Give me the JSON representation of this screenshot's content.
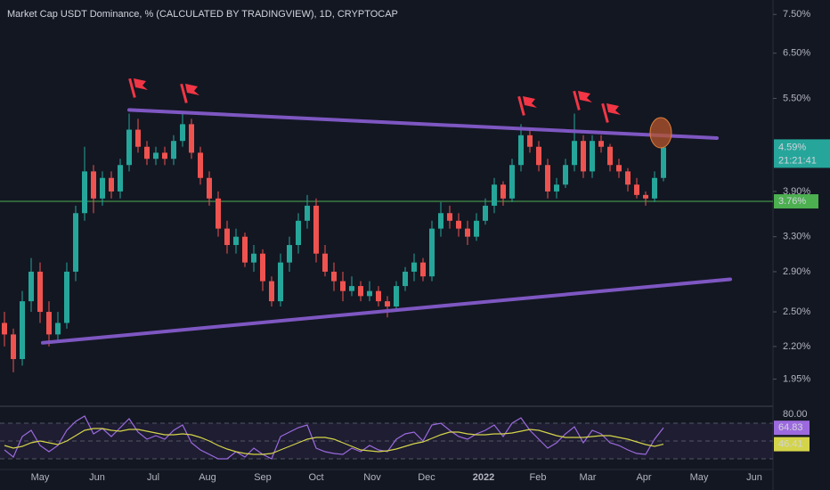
{
  "chart_data": {
    "type": "candlestick",
    "title": "Market Cap USDT Dominance, % (CALCULATED BY TRADINGVIEW), 1D, CRYPTOCAP",
    "log_scale": true,
    "up_color": "#26a69a",
    "down_color": "#ef5350",
    "ylim": [
      1.77,
      7.91
    ],
    "yticks": [
      {
        "value": 7.5,
        "label": "7.50%"
      },
      {
        "value": 6.5,
        "label": "6.50%"
      },
      {
        "value": 5.5,
        "label": "5.50%"
      },
      {
        "value": 3.9,
        "label": "3.90%"
      },
      {
        "value": 3.3,
        "label": "3.30%"
      },
      {
        "value": 2.9,
        "label": "2.90%"
      },
      {
        "value": 2.5,
        "label": "2.50%"
      },
      {
        "value": 2.2,
        "label": "2.20%"
      },
      {
        "value": 1.95,
        "label": "1.95%"
      }
    ],
    "categories": [
      "May",
      "Jun",
      "Jul",
      "Aug",
      "Sep",
      "Oct",
      "Nov",
      "Dec",
      "2022",
      "Feb",
      "Mar",
      "Apr",
      "May",
      "Jun"
    ],
    "ohlc": [
      [
        2.4,
        2.5,
        2.2,
        2.3
      ],
      [
        2.3,
        2.35,
        2.0,
        2.1
      ],
      [
        2.1,
        2.7,
        2.05,
        2.6
      ],
      [
        2.6,
        3.05,
        2.5,
        2.9
      ],
      [
        2.9,
        3.0,
        2.4,
        2.5
      ],
      [
        2.5,
        2.6,
        2.2,
        2.3
      ],
      [
        2.3,
        2.5,
        2.25,
        2.4
      ],
      [
        2.4,
        3.0,
        2.35,
        2.9
      ],
      [
        2.9,
        3.7,
        2.8,
        3.6
      ],
      [
        3.6,
        4.6,
        3.5,
        4.2
      ],
      [
        4.2,
        4.3,
        3.6,
        3.8
      ],
      [
        3.8,
        4.2,
        3.7,
        4.1
      ],
      [
        4.1,
        4.2,
        3.8,
        3.9
      ],
      [
        3.9,
        4.4,
        3.8,
        4.3
      ],
      [
        4.3,
        5.2,
        4.2,
        4.9
      ],
      [
        4.9,
        5.1,
        4.5,
        4.6
      ],
      [
        4.6,
        4.7,
        4.3,
        4.4
      ],
      [
        4.4,
        4.6,
        4.3,
        4.5
      ],
      [
        4.5,
        4.6,
        4.3,
        4.4
      ],
      [
        4.4,
        4.8,
        4.3,
        4.7
      ],
      [
        4.7,
        5.2,
        4.6,
        5.0
      ],
      [
        5.0,
        5.1,
        4.4,
        4.5
      ],
      [
        4.5,
        4.6,
        4.0,
        4.1
      ],
      [
        4.1,
        4.2,
        3.7,
        3.8
      ],
      [
        3.8,
        3.9,
        3.3,
        3.4
      ],
      [
        3.4,
        3.5,
        3.1,
        3.2
      ],
      [
        3.2,
        3.4,
        3.1,
        3.3
      ],
      [
        3.3,
        3.35,
        2.95,
        3.0
      ],
      [
        3.0,
        3.2,
        2.9,
        3.1
      ],
      [
        3.1,
        3.15,
        2.7,
        2.8
      ],
      [
        2.8,
        2.85,
        2.55,
        2.6
      ],
      [
        2.6,
        3.1,
        2.55,
        3.0
      ],
      [
        3.0,
        3.3,
        2.9,
        3.2
      ],
      [
        3.2,
        3.6,
        3.1,
        3.5
      ],
      [
        3.5,
        3.85,
        3.4,
        3.7
      ],
      [
        3.7,
        3.8,
        3.0,
        3.1
      ],
      [
        3.1,
        3.2,
        2.85,
        2.9
      ],
      [
        2.9,
        3.0,
        2.7,
        2.8
      ],
      [
        2.8,
        2.9,
        2.6,
        2.7
      ],
      [
        2.7,
        2.85,
        2.65,
        2.75
      ],
      [
        2.75,
        2.8,
        2.6,
        2.65
      ],
      [
        2.65,
        2.8,
        2.6,
        2.7
      ],
      [
        2.7,
        2.75,
        2.55,
        2.6
      ],
      [
        2.6,
        2.65,
        2.45,
        2.55
      ],
      [
        2.55,
        2.8,
        2.5,
        2.75
      ],
      [
        2.75,
        2.95,
        2.7,
        2.9
      ],
      [
        2.9,
        3.1,
        2.8,
        3.0
      ],
      [
        3.0,
        3.05,
        2.8,
        2.85
      ],
      [
        2.85,
        3.5,
        2.8,
        3.4
      ],
      [
        3.4,
        3.75,
        3.3,
        3.6
      ],
      [
        3.6,
        3.7,
        3.4,
        3.5
      ],
      [
        3.5,
        3.6,
        3.3,
        3.4
      ],
      [
        3.4,
        3.5,
        3.2,
        3.3
      ],
      [
        3.3,
        3.6,
        3.25,
        3.5
      ],
      [
        3.5,
        3.8,
        3.45,
        3.7
      ],
      [
        3.7,
        4.1,
        3.6,
        4.0
      ],
      [
        4.0,
        4.05,
        3.7,
        3.8
      ],
      [
        3.8,
        4.4,
        3.75,
        4.3
      ],
      [
        4.3,
        5.0,
        4.2,
        4.8
      ],
      [
        4.8,
        4.9,
        4.5,
        4.6
      ],
      [
        4.6,
        4.7,
        4.2,
        4.3
      ],
      [
        4.3,
        4.4,
        3.8,
        3.9
      ],
      [
        3.9,
        4.1,
        3.8,
        4.0
      ],
      [
        4.0,
        4.4,
        3.95,
        4.3
      ],
      [
        4.3,
        5.2,
        4.2,
        4.7
      ],
      [
        4.7,
        4.8,
        4.1,
        4.2
      ],
      [
        4.2,
        4.8,
        4.1,
        4.7
      ],
      [
        4.7,
        4.8,
        4.5,
        4.6
      ],
      [
        4.6,
        4.65,
        4.2,
        4.3
      ],
      [
        4.3,
        4.4,
        4.1,
        4.2
      ],
      [
        4.2,
        4.25,
        3.9,
        4.0
      ],
      [
        4.0,
        4.1,
        3.8,
        3.85
      ],
      [
        3.85,
        3.9,
        3.7,
        3.8
      ],
      [
        3.8,
        4.2,
        3.75,
        4.1
      ],
      [
        4.1,
        4.6,
        4.05,
        4.59
      ]
    ],
    "trendlines": [
      [
        5.27,
        4.75
      ],
      [
        2.23,
        2.82
      ]
    ],
    "trendline_color": "#7e57c2",
    "hline": {
      "value": 3.76,
      "label": "3.76%",
      "color": "#4caf50"
    },
    "last_price": {
      "value": 4.59,
      "label": "4.59%"
    },
    "countdown": "21:21:41",
    "rsi": {
      "color": "#9c6ade",
      "values": [
        40,
        32,
        55,
        62,
        45,
        38,
        45,
        62,
        72,
        78,
        58,
        64,
        55,
        65,
        75,
        60,
        52,
        56,
        52,
        62,
        68,
        48,
        40,
        35,
        30,
        30,
        38,
        32,
        42,
        35,
        30,
        55,
        60,
        65,
        68,
        42,
        38,
        36,
        35,
        42,
        38,
        45,
        40,
        38,
        52,
        58,
        60,
        50,
        68,
        70,
        62,
        55,
        52,
        58,
        62,
        68,
        55,
        70,
        76,
        62,
        52,
        42,
        48,
        58,
        66,
        48,
        62,
        58,
        48,
        45,
        40,
        36,
        35,
        52,
        64.83
      ],
      "ma": {
        "color": "#d4d44a",
        "values": [
          45,
          42,
          44,
          48,
          50,
          48,
          46,
          50,
          56,
          62,
          64,
          64,
          62,
          61,
          63,
          63,
          61,
          59,
          57,
          57,
          58,
          57,
          54,
          50,
          45,
          41,
          38,
          36,
          35,
          35,
          36,
          40,
          44,
          48,
          52,
          54,
          54,
          52,
          48,
          44,
          40,
          39,
          38,
          39,
          41,
          44,
          47,
          49,
          53,
          57,
          60,
          60,
          58,
          57,
          57,
          58,
          58,
          59,
          61,
          63,
          62,
          59,
          56,
          54,
          54,
          54,
          55,
          56,
          56,
          54,
          52,
          49,
          46,
          44,
          46.41
        ]
      },
      "ylim": [
        20,
        87
      ],
      "yticks": [
        {
          "value": 80,
          "label": "80.00"
        }
      ],
      "bands": [
        70,
        50,
        30
      ],
      "last_label": "64.83",
      "ma_last_label": "46.41"
    }
  }
}
